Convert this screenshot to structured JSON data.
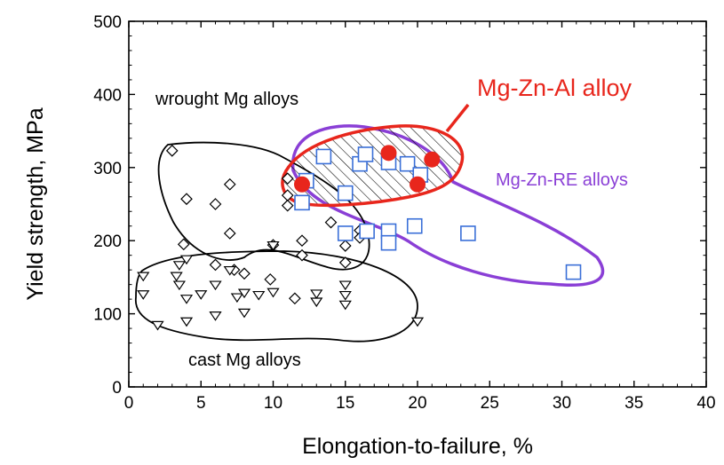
{
  "chart_data": {
    "type": "scatter",
    "xlabel": "Elongation-to-failure, %",
    "ylabel": "Yield strength, MPa",
    "xlim": [
      0,
      40
    ],
    "ylim": [
      0,
      500
    ],
    "xticks": [
      0,
      5,
      10,
      15,
      20,
      25,
      30,
      35,
      40
    ],
    "yticks": [
      0,
      100,
      200,
      300,
      400,
      500
    ],
    "grid": false,
    "colors": {
      "mg_zn_al": "#e8261c",
      "mg_zn_re": "#8a3fd6",
      "squares": "#3a6fd8",
      "black": "#000000"
    },
    "series": [
      {
        "marker": "diamond",
        "values": [
          [
            3.0,
            323
          ],
          [
            4.0,
            257
          ],
          [
            6.0,
            250
          ],
          [
            7.0,
            277
          ],
          [
            7.0,
            210
          ],
          [
            3.8,
            195
          ],
          [
            6.0,
            167
          ],
          [
            7.3,
            160
          ],
          [
            8.0,
            155
          ],
          [
            10.0,
            194
          ],
          [
            11.0,
            285
          ],
          [
            11.0,
            262
          ],
          [
            11.0,
            248
          ],
          [
            12.0,
            200
          ],
          [
            12.0,
            180
          ],
          [
            14.0,
            225
          ],
          [
            15.0,
            193
          ],
          [
            15.0,
            170
          ],
          [
            16.0,
            214
          ],
          [
            16.0,
            204
          ],
          [
            9.8,
            147
          ],
          [
            11.5,
            121
          ]
        ]
      },
      {
        "marker": "triangle-down",
        "values": [
          [
            1.0,
            152
          ],
          [
            1.0,
            127
          ],
          [
            2.0,
            85
          ],
          [
            3.5,
            167
          ],
          [
            3.3,
            152
          ],
          [
            4.0,
            175
          ],
          [
            3.5,
            140
          ],
          [
            4.0,
            121
          ],
          [
            5.0,
            127
          ],
          [
            4.0,
            90
          ],
          [
            6.0,
            140
          ],
          [
            6.0,
            98
          ],
          [
            7.0,
            160
          ],
          [
            7.5,
            123
          ],
          [
            8.0,
            129
          ],
          [
            8.0,
            102
          ],
          [
            9.0,
            126
          ],
          [
            10.0,
            130
          ],
          [
            10.0,
            194
          ],
          [
            13.0,
            128
          ],
          [
            13.0,
            117
          ],
          [
            15.0,
            140
          ],
          [
            15.0,
            126
          ],
          [
            15.0,
            113
          ],
          [
            20.0,
            90
          ]
        ]
      },
      {
        "marker": "square",
        "values": [
          [
            12.0,
            252
          ],
          [
            12.3,
            282
          ],
          [
            13.5,
            315
          ],
          [
            15.0,
            265
          ],
          [
            16.0,
            305
          ],
          [
            16.4,
            318
          ],
          [
            18.0,
            307
          ],
          [
            19.3,
            305
          ],
          [
            20.2,
            290
          ],
          [
            15.0,
            210
          ],
          [
            16.5,
            213
          ],
          [
            18.0,
            213
          ],
          [
            18.0,
            197
          ],
          [
            19.8,
            220
          ],
          [
            23.5,
            210
          ],
          [
            30.8,
            157
          ]
        ]
      },
      {
        "marker": "circle-filled",
        "values": [
          [
            12.0,
            277
          ],
          [
            18.0,
            320
          ],
          [
            20.0,
            277
          ],
          [
            21.0,
            311
          ]
        ]
      }
    ],
    "regions": [
      {
        "label": "wrought Mg alloys"
      },
      {
        "label": "cast Mg alloys"
      },
      {
        "label": "Mg-Zn-RE alloys"
      },
      {
        "label": "Mg-Zn-Al alloy"
      }
    ]
  }
}
